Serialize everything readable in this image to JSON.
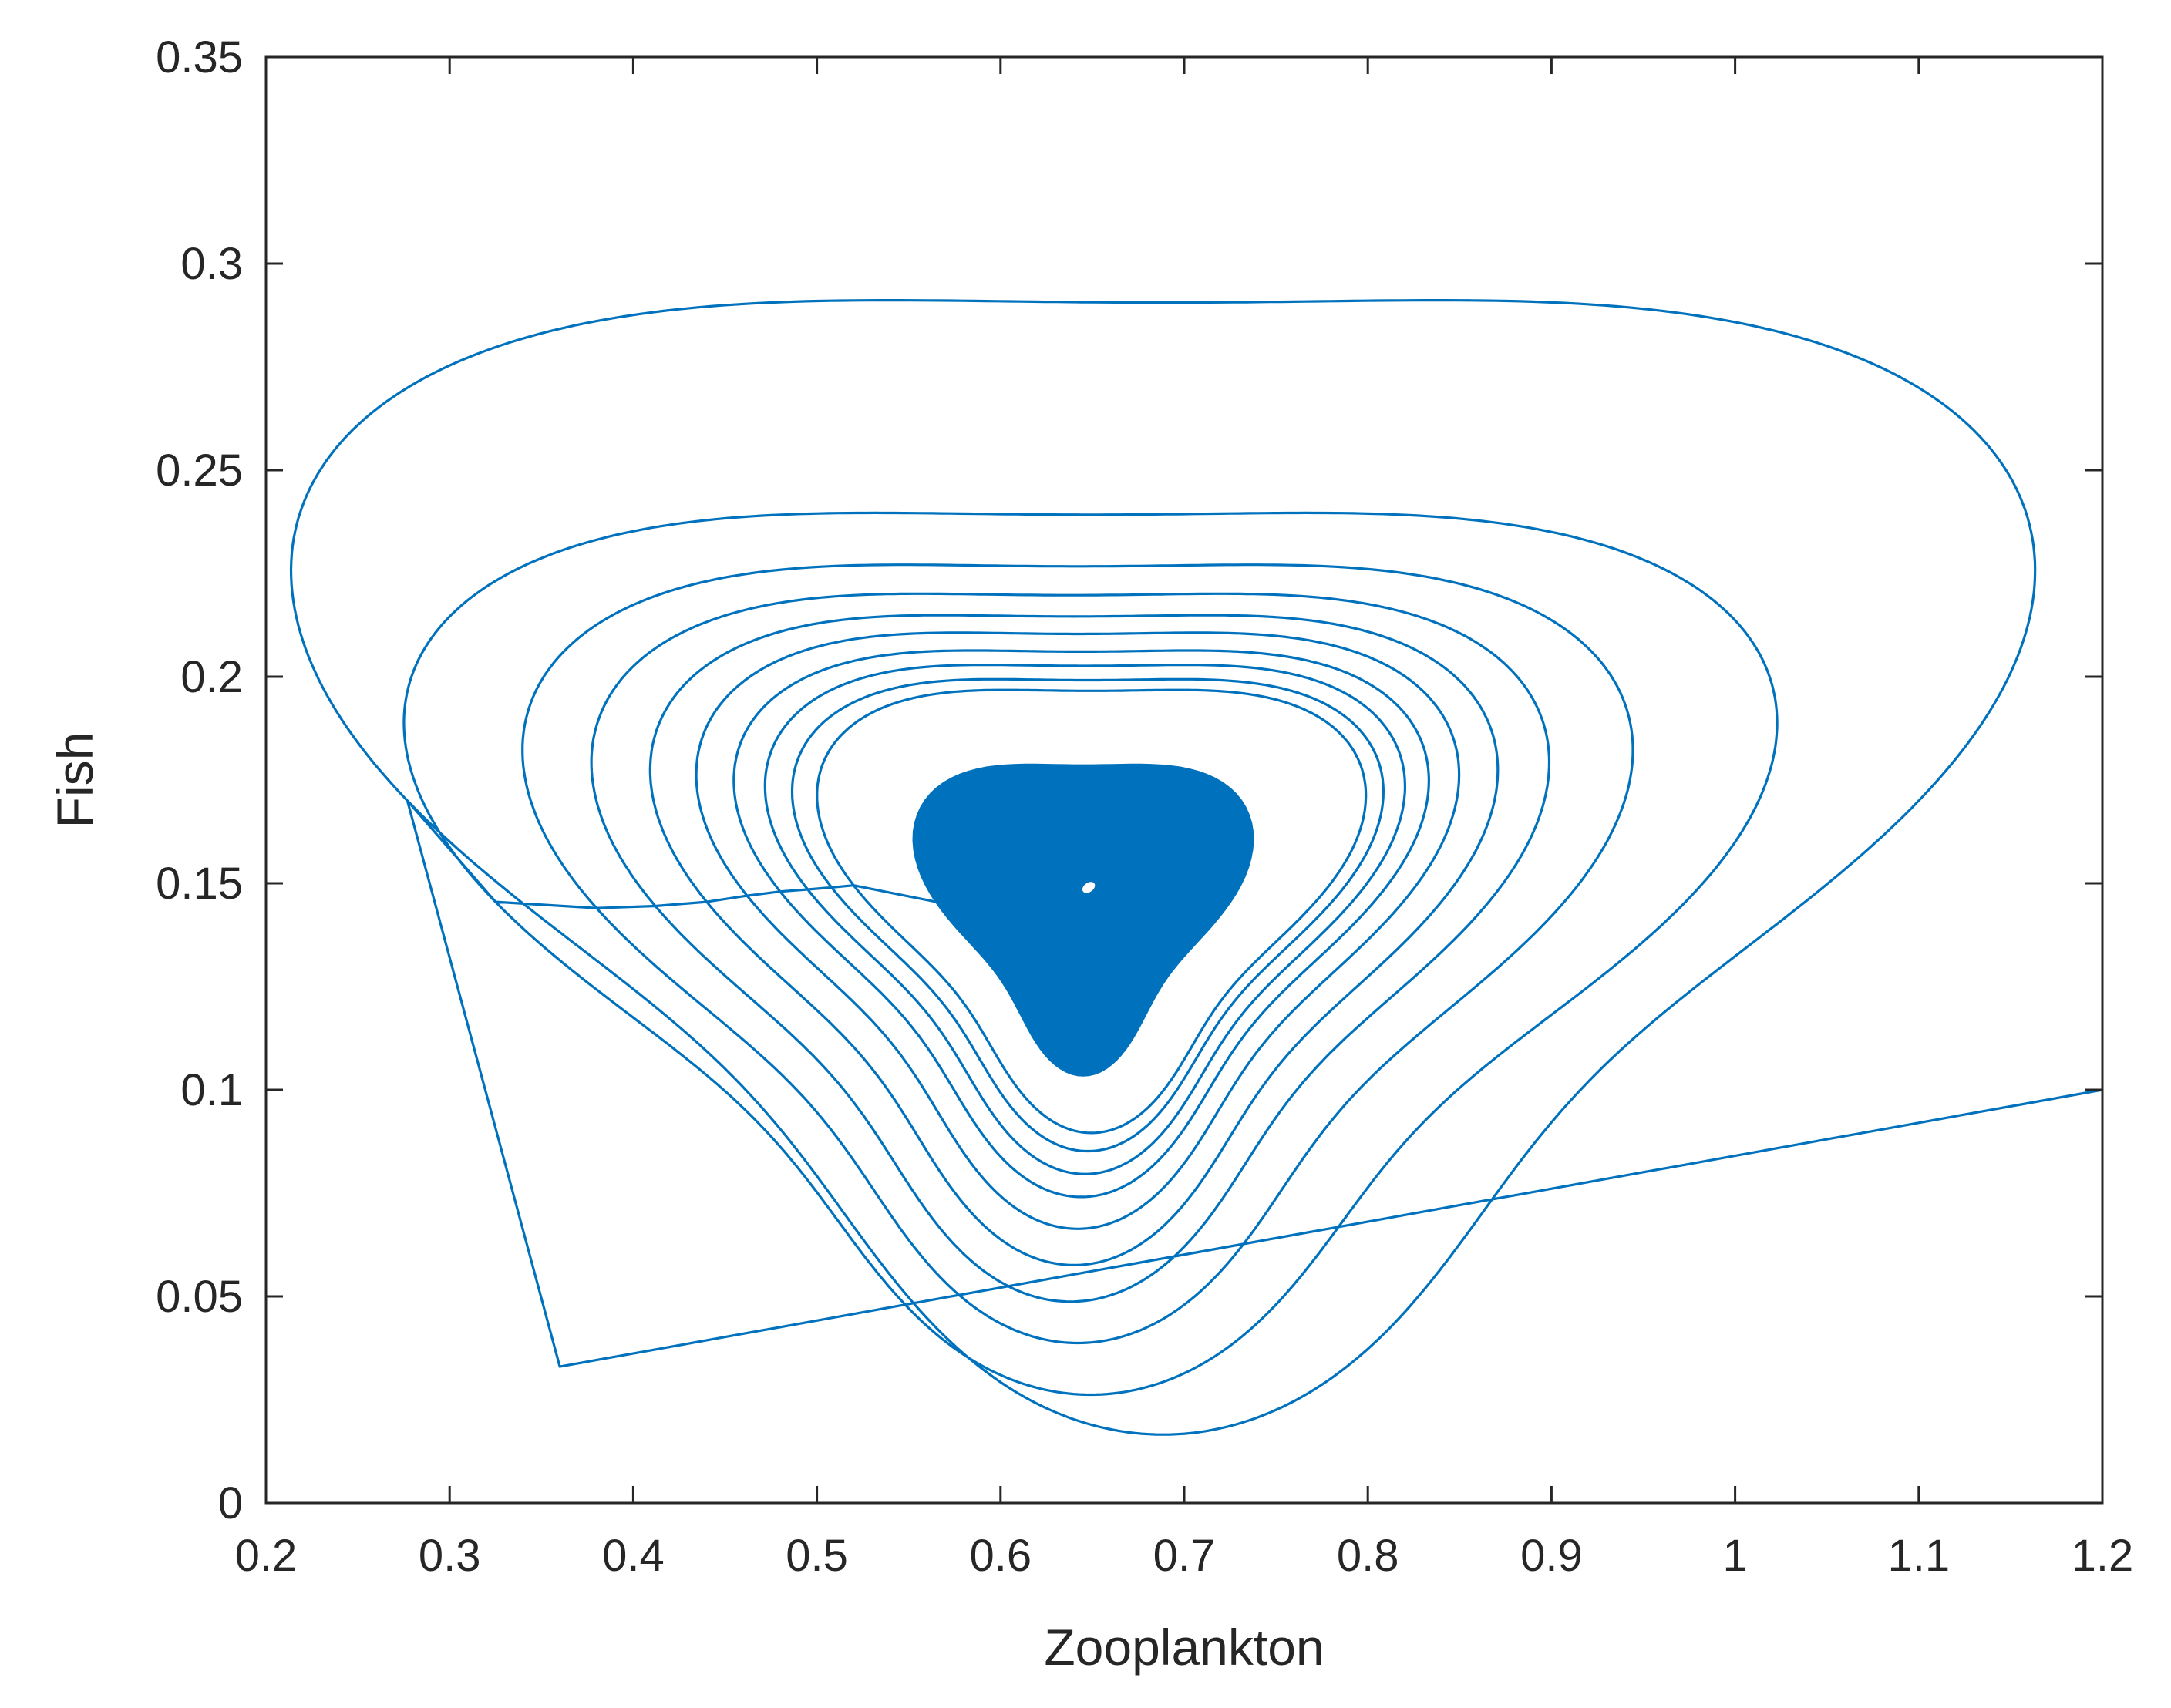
{
  "chart_data": {
    "type": "line",
    "title": "",
    "xlabel": "Zooplankton",
    "ylabel": "Fish",
    "xlim": [
      0.2,
      1.2
    ],
    "ylim": [
      0,
      0.35
    ],
    "xticks": [
      0.2,
      0.3,
      0.4,
      0.5,
      0.6,
      0.7,
      0.8,
      0.9,
      1,
      1.1,
      1.2
    ],
    "xtick_labels": [
      "0.2",
      "0.3",
      "0.4",
      "0.5",
      "0.6",
      "0.7",
      "0.8",
      "0.9",
      "1",
      "1.1",
      "1.2"
    ],
    "yticks": [
      0,
      0.05,
      0.1,
      0.15,
      0.2,
      0.25,
      0.3,
      0.35
    ],
    "ytick_labels": [
      "0",
      "0.05",
      "0.1",
      "0.15",
      "0.2",
      "0.25",
      "0.3",
      "0.35"
    ],
    "grid": false,
    "box": true,
    "line_color": "#0072BD",
    "series": [
      {
        "trajectory": "inward spiral (phase portrait)",
        "start": [
          1.2,
          0.1
        ],
        "equilibrium": [
          0.648,
          0.149
        ],
        "outer_loop": {
          "x_min": 0.277,
          "x_max": 1.1,
          "y_min": 0.033,
          "y_max": 0.307,
          "x_at_y_max": 0.785,
          "y_at_x_min": 0.05,
          "y_at_x_max": 0.14
        },
        "loop_x_min": [
          0.277,
          0.325,
          0.38,
          0.412,
          0.44,
          0.462,
          0.48,
          0.495,
          0.508,
          0.52
        ],
        "loop_x_max": [
          1.1,
          0.973,
          0.904,
          0.864,
          0.84,
          0.822,
          0.808,
          0.797,
          0.787,
          0.779
        ],
        "loop_y_max": [
          0.307,
          0.252,
          0.238,
          0.23,
          0.224,
          0.219,
          0.214,
          0.21,
          0.206,
          0.203
        ],
        "loop_y_min": [
          0.033,
          0.039,
          0.05,
          0.059,
          0.067,
          0.075,
          0.082,
          0.087,
          0.092,
          0.096
        ],
        "dense_core_range": {
          "x": [
            0.565,
            0.725
          ],
          "y": [
            0.108,
            0.183
          ]
        }
      }
    ]
  }
}
